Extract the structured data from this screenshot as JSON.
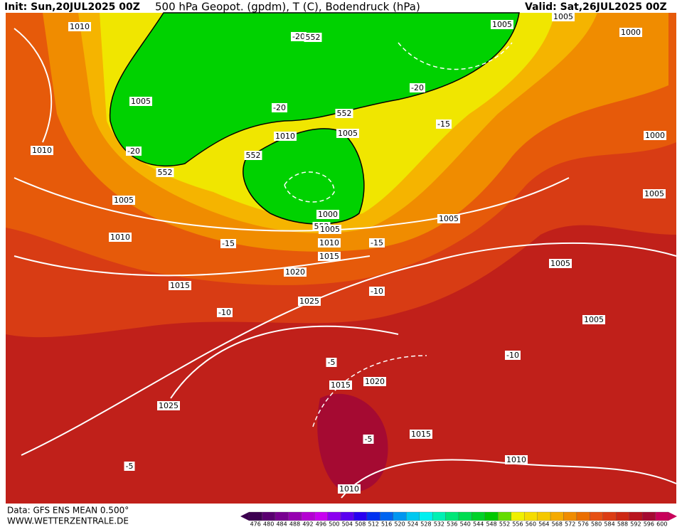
{
  "header": {
    "init": "Init: Sun,20JUL2025 00Z",
    "title": "500 hPa Geopot. (gpdm), T (C), Bodendruck (hPa)",
    "valid": "Valid: Sat,26JUL2025 00Z"
  },
  "footer": {
    "data": "Data: GFS ENS MEAN 0.500°",
    "site": "WWW.WETTERZENTRALE.DE"
  },
  "scale": [
    {
      "label": 476,
      "color": "#3c0050"
    },
    {
      "label": 480,
      "color": "#5a0070"
    },
    {
      "label": 484,
      "color": "#780090"
    },
    {
      "label": 488,
      "color": "#9600b0"
    },
    {
      "label": 492,
      "color": "#b400d2"
    },
    {
      "label": 496,
      "color": "#c800f0"
    },
    {
      "label": 500,
      "color": "#8c00f0"
    },
    {
      "label": 504,
      "color": "#5a00f0"
    },
    {
      "label": 508,
      "color": "#2800f0"
    },
    {
      "label": 512,
      "color": "#0032f0"
    },
    {
      "label": 516,
      "color": "#0064f0"
    },
    {
      "label": 520,
      "color": "#0096f0"
    },
    {
      "label": 524,
      "color": "#00c8f0"
    },
    {
      "label": 528,
      "color": "#00f0f0"
    },
    {
      "label": 532,
      "color": "#00f0b4"
    },
    {
      "label": 536,
      "color": "#00e678"
    },
    {
      "label": 540,
      "color": "#00dc50"
    },
    {
      "label": 544,
      "color": "#00d228"
    },
    {
      "label": 548,
      "color": "#00c800"
    },
    {
      "label": 552,
      "color": "#64dc00"
    },
    {
      "label": 556,
      "color": "#f0f000"
    },
    {
      "label": 560,
      "color": "#f5dc00"
    },
    {
      "label": 564,
      "color": "#f5c800"
    },
    {
      "label": 568,
      "color": "#f5aa00"
    },
    {
      "label": 572,
      "color": "#f08c00"
    },
    {
      "label": 576,
      "color": "#eb6e00"
    },
    {
      "label": 580,
      "color": "#e65014"
    },
    {
      "label": 584,
      "color": "#dc3c14"
    },
    {
      "label": 588,
      "color": "#cd2814"
    },
    {
      "label": 592,
      "color": "#b9141e"
    },
    {
      "label": 596,
      "color": "#a50a32"
    },
    {
      "label": 600,
      "color": "#c8005a"
    }
  ],
  "contour_labels": [
    "1010",
    "-20",
    "552",
    "1005",
    "1005",
    "1000",
    "1005",
    "-20",
    "-20",
    "552",
    "-15",
    "1010",
    "1005",
    "1000",
    "1010",
    "-20",
    "552",
    "552",
    "1005",
    "1000",
    "552",
    "1005",
    "1005",
    "1005",
    "1010",
    "-15",
    "1010",
    "-15",
    "1015",
    "1005",
    "1020",
    "1015",
    "-10",
    "1025",
    "-10",
    "1005",
    "-10",
    "-5",
    "1020",
    "1015",
    "1025",
    "1015",
    "-5",
    "1010",
    "-5",
    "1010"
  ]
}
